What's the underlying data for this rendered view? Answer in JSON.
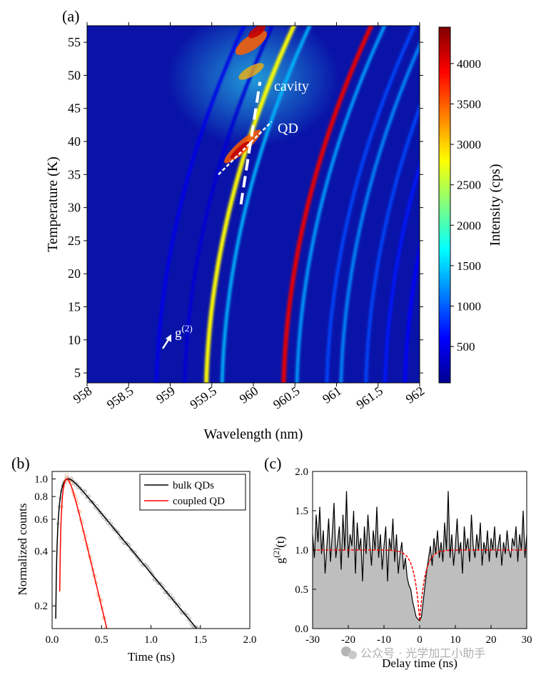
{
  "panel_a": {
    "panel_label": "(a)",
    "chart_data": {
      "type": "heatmap",
      "xlabel": "Wavelength (nm)",
      "ylabel": "Temperature (K)",
      "xlim": [
        958,
        962
      ],
      "ylim": [
        3.5,
        57.5
      ],
      "xticks": [
        958,
        958.5,
        959,
        959.5,
        960,
        960.5,
        961,
        961.5,
        962
      ],
      "xtick_labels": [
        "958",
        "958.5",
        "959",
        "959.5",
        "960",
        "960.5",
        "961",
        "961.5",
        "962"
      ],
      "yticks": [
        5,
        10,
        15,
        20,
        25,
        30,
        35,
        40,
        45,
        50,
        55
      ],
      "ytick_labels": [
        "5",
        "10",
        "15",
        "20",
        "25",
        "30",
        "35",
        "40",
        "45",
        "50",
        "55"
      ],
      "colorbar": {
        "label": "Intensity (cps)",
        "range": [
          50,
          4450
        ],
        "ticks": [
          500,
          1000,
          1500,
          2000,
          2500,
          3000,
          3500,
          4000
        ],
        "tick_labels": [
          "500",
          "1000",
          "1500",
          "2000",
          "2500",
          "3000",
          "3500",
          "4000"
        ],
        "colors": [
          "#00008f",
          "#0000ff",
          "#0080ff",
          "#00ffff",
          "#80ff80",
          "#ffff00",
          "#ff8000",
          "#ff0000",
          "#800000"
        ]
      },
      "cavity_line": [
        {
          "x": 959.85,
          "y": 30.5
        },
        {
          "x": 960.08,
          "y": 49.0
        }
      ],
      "annotations": [
        "cavity",
        "QD",
        "g(2)"
      ],
      "g2_arrow_tip": {
        "x": 959.1,
        "y": 12.3
      },
      "lines": [
        {
          "x0": 958.83,
          "k": 0.00032,
          "intensity": 500
        },
        {
          "x0": 959.17,
          "k": 0.00032,
          "intensity": 400
        },
        {
          "x0": 959.43,
          "k": 0.00032,
          "intensity": 2800
        },
        {
          "x0": 959.62,
          "k": 0.00032,
          "intensity": 1400
        },
        {
          "x0": 960.36,
          "k": 0.00032,
          "intensity": 4000
        },
        {
          "x0": 960.52,
          "k": 0.00032,
          "intensity": 1300
        },
        {
          "x0": 960.88,
          "k": 0.00032,
          "intensity": 900
        },
        {
          "x0": 961.05,
          "k": 0.00032,
          "intensity": 1200
        },
        {
          "x0": 961.35,
          "k": 0.00032,
          "intensity": 900
        },
        {
          "x0": 961.58,
          "k": 0.00032,
          "intensity": 700
        },
        {
          "x0": 961.82,
          "k": 0.00032,
          "intensity": 600
        }
      ]
    }
  },
  "panel_a_text": {
    "cavity": "cavity",
    "qd": "QD",
    "g_base": "g",
    "g_sup": "(2)"
  },
  "panel_b": {
    "panel_label": "(b)",
    "chart_data": {
      "type": "line",
      "xlabel": "Time (ns)",
      "ylabel": "Normalized counts",
      "xlim": [
        0,
        2.0
      ],
      "ylim": [
        0.15,
        1.1
      ],
      "yscale": "log",
      "xticks": [
        0.0,
        0.5,
        1.0,
        1.5,
        2.0
      ],
      "xtick_labels": [
        "0.0",
        "0.5",
        "1.0",
        "1.5",
        "2.0"
      ],
      "yticks": [
        0.2,
        0.4,
        0.6,
        0.8,
        1.0
      ],
      "ytick_labels": [
        "0.2",
        "0.4",
        "0.6",
        "0.8",
        "1.0"
      ],
      "legend": {
        "position": "top-right",
        "entries": [
          "bulk QDs",
          "coupled QD"
        ]
      },
      "series": [
        {
          "name": "bulk QDs",
          "color": "#000000",
          "t0": 0.03,
          "rise": 0.05,
          "tau": 0.66,
          "peak_t": 0.17
        },
        {
          "name": "coupled QD",
          "color": "#ff0000",
          "t0": 0.07,
          "rise": 0.05,
          "tau": 0.19,
          "peak_t": 0.19
        }
      ]
    }
  },
  "panel_c": {
    "panel_label": "(c)",
    "chart_data": {
      "type": "line",
      "xlabel": "Delay time (ns)",
      "ylabel": "g(2)(t)",
      "ylabel_base": "g",
      "ylabel_sup": "(2)",
      "ylabel_arg": "(t)",
      "xlim": [
        -30,
        30
      ],
      "ylim": [
        0.0,
        2.0
      ],
      "xticks": [
        -30,
        -20,
        -10,
        0,
        10,
        20,
        30
      ],
      "xtick_labels": [
        "-30",
        "-20",
        "-10",
        "0",
        "10",
        "20",
        "30"
      ],
      "yticks": [
        0.0,
        0.5,
        1.0,
        1.5,
        2.0
      ],
      "ytick_labels": [
        "0.0",
        "0.5",
        "1.0",
        "1.5",
        "2.0"
      ],
      "fit": {
        "baseline": 1.0,
        "g0": 0.1,
        "tau_ns": 1.5
      },
      "series": [
        {
          "name": "data",
          "color": "#000000",
          "fill": "#bebebe",
          "x": [
            -30,
            -29.5,
            -29,
            -28.5,
            -28,
            -27.5,
            -27,
            -26.5,
            -26,
            -25.5,
            -25,
            -24.5,
            -24,
            -23.5,
            -23,
            -22.5,
            -22,
            -21.5,
            -21,
            -20.5,
            -20,
            -19.5,
            -19,
            -18.5,
            -18,
            -17.5,
            -17,
            -16.5,
            -16,
            -15.5,
            -15,
            -14.5,
            -14,
            -13.5,
            -13,
            -12.5,
            -12,
            -11.5,
            -11,
            -10.5,
            -10,
            -9.5,
            -9,
            -8.5,
            -8,
            -7.5,
            -7,
            -6.5,
            -6,
            -5.5,
            -5,
            -4.5,
            -4,
            -3.5,
            -3,
            -2.5,
            -2,
            -1.5,
            -1,
            -0.5,
            0,
            0.5,
            1,
            1.5,
            2,
            2.5,
            3,
            3.5,
            4,
            4.5,
            5,
            5.5,
            6,
            6.5,
            7,
            7.5,
            8,
            8.5,
            9,
            9.5,
            10,
            10.5,
            11,
            11.5,
            12,
            12.5,
            13,
            13.5,
            14,
            14.5,
            15,
            15.5,
            16,
            16.5,
            17,
            17.5,
            18,
            18.5,
            19,
            19.5,
            20,
            20.5,
            21,
            21.5,
            22,
            22.5,
            23,
            23.5,
            24,
            24.5,
            25,
            25.5,
            26,
            26.5,
            27,
            27.5,
            28,
            28.5,
            29,
            29.5,
            30
          ],
          "y": [
            1.2,
            0.9,
            1.45,
            1.1,
            1.55,
            0.95,
            1.25,
            0.7,
            1.05,
            1.4,
            0.85,
            1.2,
            1.6,
            0.9,
            1.1,
            1.3,
            0.75,
            1.45,
            1.0,
            1.75,
            0.9,
            1.2,
            1.05,
            1.5,
            0.7,
            1.35,
            1.0,
            1.15,
            0.6,
            1.3,
            0.95,
            1.45,
            1.1,
            0.8,
            1.25,
            1.0,
            1.55,
            0.9,
            1.2,
            0.75,
            1.05,
            1.3,
            0.6,
            1.15,
            1.0,
            1.4,
            0.85,
            1.2,
            0.7,
            0.95,
            1.1,
            0.75,
            0.9,
            0.65,
            0.55,
            0.5,
            0.35,
            0.25,
            0.15,
            0.12,
            0.1,
            0.15,
            0.35,
            0.55,
            0.75,
            0.9,
            1.05,
            0.8,
            1.15,
            0.95,
            1.25,
            0.9,
            1.1,
            0.85,
            1.35,
            1.0,
            1.75,
            0.9,
            1.2,
            0.8,
            1.05,
            1.4,
            0.95,
            1.1,
            0.7,
            1.3,
            1.0,
            1.15,
            0.85,
            1.45,
            1.05,
            0.9,
            1.2,
            1.0,
            1.35,
            0.8,
            1.1,
            0.95,
            1.25,
            0.85,
            1.15,
            1.0,
            1.3,
            0.9,
            1.05,
            1.2,
            0.8,
            1.1,
            0.95,
            1.25,
            1.0,
            0.9,
            1.15,
            1.05,
            1.3,
            0.85,
            1.2,
            1.0,
            1.5,
            0.9,
            1.2
          ]
        }
      ]
    }
  },
  "watermark": {
    "text": "公众号 · 光学加工小助手"
  }
}
